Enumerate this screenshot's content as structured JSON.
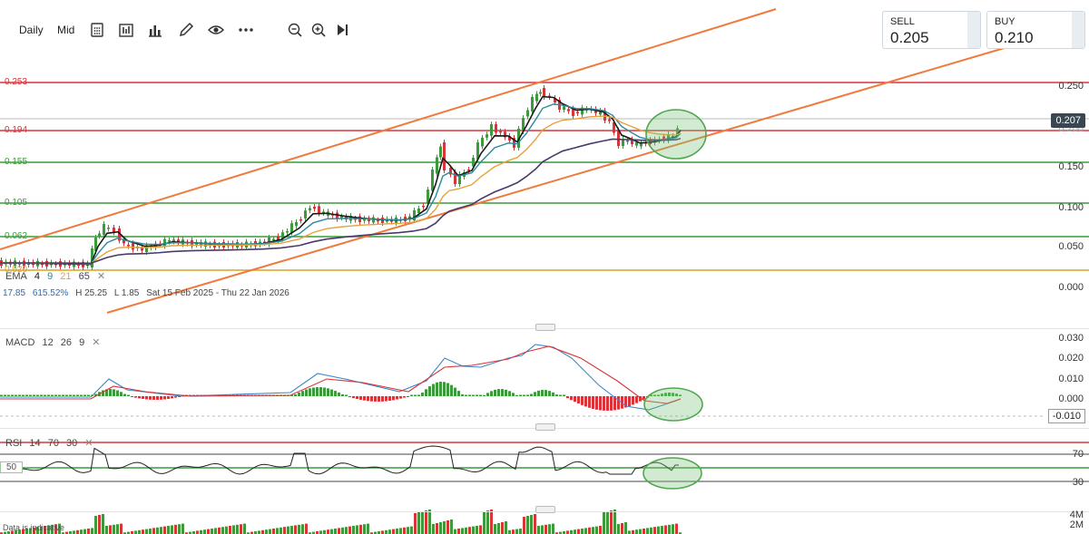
{
  "toolbar": {
    "interval": "Daily",
    "price_type": "Mid",
    "icons": [
      "calculator-icon",
      "chart-type-icon",
      "bar-chart-icon",
      "draw-pen-icon",
      "eye-icon",
      "more-dots-icon",
      "zoom-out-icon",
      "zoom-in-icon",
      "play-forward-icon"
    ]
  },
  "quote": {
    "sell_label": "SELL",
    "sell_value": "0.205",
    "buy_label": "BUY",
    "buy_value": "0.210"
  },
  "price_axis": {
    "ticks": [
      "0.250",
      "0.200",
      "0.150",
      "0.100",
      "0.050",
      "0.000"
    ],
    "last_price": "0.207"
  },
  "horizontal_levels": [
    {
      "label": "0.253",
      "color": "#d9343a"
    },
    {
      "label": "0.194",
      "color": "#d9343a"
    },
    {
      "label": "0.155",
      "color": "#3c9a3c"
    },
    {
      "label": "0.105",
      "color": "#3c9a3c"
    },
    {
      "label": "0.062",
      "color": "#3c9a3c"
    },
    {
      "label": "0.020",
      "color": "#d8a320"
    }
  ],
  "ema_legend": {
    "name": "EMA",
    "periods": [
      {
        "value": "4",
        "color": "#1a1a1a"
      },
      {
        "value": "9",
        "color": "#2b8a9e"
      },
      {
        "value": "21",
        "color": "#e8a13a"
      },
      {
        "value": "65",
        "color": "#4a3a6a"
      }
    ],
    "close_icon": "close-icon"
  },
  "stats": {
    "last": "17.85",
    "change": "615.52%",
    "high": "H 25.25",
    "low": "L 1.85",
    "range": "Sat 15 Feb 2025 - Thu 22 Jan 2026"
  },
  "macd": {
    "name": "MACD",
    "p1": "12",
    "p2": "26",
    "p3": "9",
    "ticks": [
      "0.030",
      "0.020",
      "0.010",
      "0.000"
    ],
    "ref_value": "-0.010"
  },
  "rsi": {
    "name": "RSI",
    "p1": "14",
    "p2": "70",
    "p3": "30",
    "ticks": [
      "70",
      "30"
    ],
    "mid_label": "50"
  },
  "volume": {
    "ticks": [
      "4M",
      "2M"
    ]
  },
  "footer": {
    "note": "Data is indicative"
  },
  "colors": {
    "up": "#3c9a3c",
    "down": "#d9343a",
    "trendline": "#f07a3e",
    "highlight": "#7cc47c"
  }
}
